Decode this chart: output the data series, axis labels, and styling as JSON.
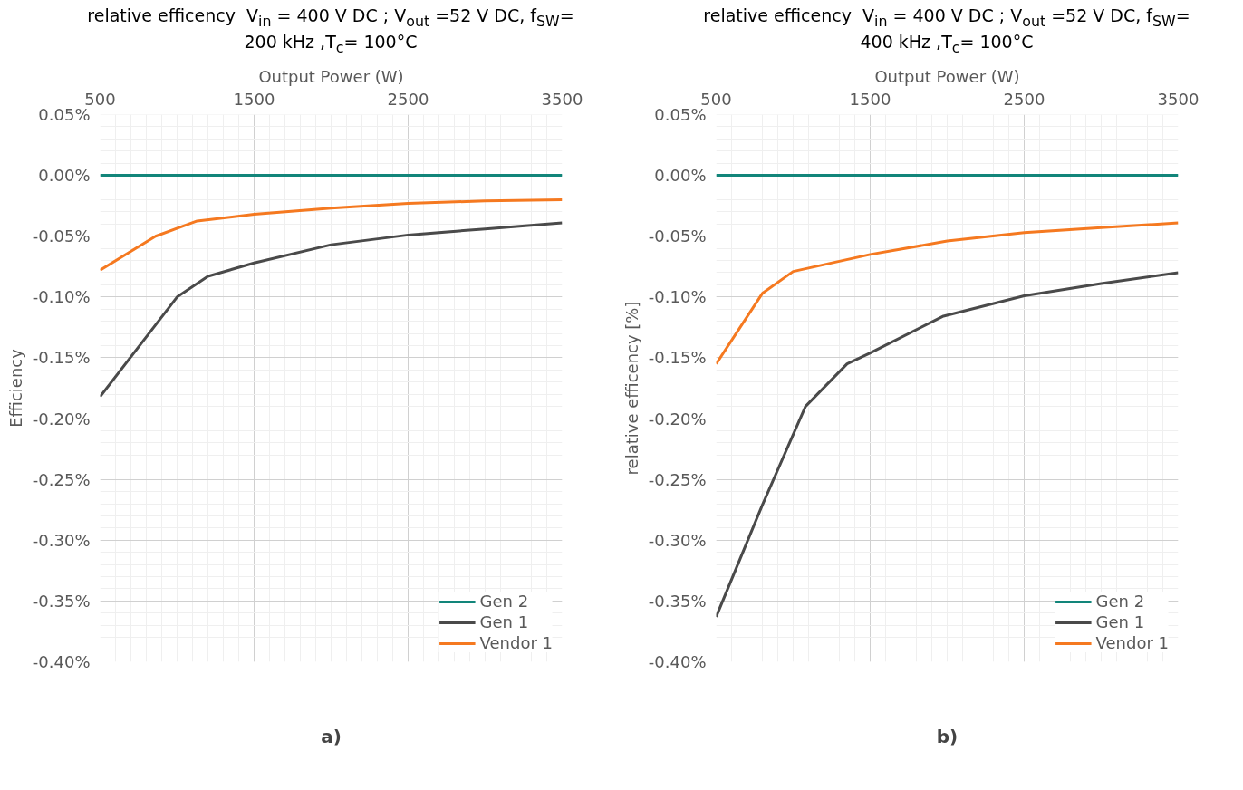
{
  "chart_data": [
    {
      "type": "line",
      "title": "relative efficency  V$_{in}$ = 400 V DC ; V$_{out}$ =52 V DC, f$_{SW}$= 200 kHz ,T$_{c}$= 100°C",
      "xlabel": "Output Power (W)",
      "ylabel": "Efficiency",
      "xlim": [
        500,
        3500
      ],
      "xticks": [
        500,
        1500,
        2500,
        3500
      ],
      "ylim": [
        -0.4,
        0.05
      ],
      "yticks": [
        {
          "value": 0.05,
          "label": "0.05%"
        },
        {
          "value": 0,
          "label": "0.00%"
        },
        {
          "value": -0.05,
          "label": "-0.05%"
        },
        {
          "value": -0.1,
          "label": "-0.10%"
        },
        {
          "value": -0.15,
          "label": "-0.15%"
        },
        {
          "value": -0.2,
          "label": "-0.20%"
        },
        {
          "value": -0.25,
          "label": "-0.25%"
        },
        {
          "value": -0.3,
          "label": "-0.30%"
        },
        {
          "value": -0.35,
          "label": "-0.35%"
        },
        {
          "value": -0.4,
          "label": "-0.40%"
        }
      ],
      "grid": true,
      "legend": "bottom right",
      "annotations": [
        "a)"
      ],
      "series": [
        {
          "name": "Gen 2",
          "color": "#12857a",
          "x": [
            500,
            3500
          ],
          "values": [
            0,
            0
          ]
        },
        {
          "name": "Gen 1",
          "color": "#4a4a4a",
          "x": [
            500,
            1000,
            1200,
            1500,
            2000,
            2500,
            3000,
            3500
          ],
          "values": [
            -0.182,
            -0.1,
            -0.083,
            -0.072,
            -0.057,
            -0.049,
            -0.044,
            -0.039
          ]
        },
        {
          "name": "Vendor 1",
          "color": "#f57920",
          "x": [
            500,
            860,
            1130,
            1500,
            2000,
            2500,
            3000,
            3500
          ],
          "values": [
            -0.078,
            -0.05,
            -0.0375,
            -0.032,
            -0.027,
            -0.023,
            -0.021,
            -0.02
          ]
        }
      ]
    },
    {
      "type": "line",
      "title": "relative efficency  V$_{in}$ = 400 V DC ; V$_{out}$ =52 V DC, f$_{SW}$= 400 kHz ,T$_{c}$= 100°C",
      "xlabel": "Output Power (W)",
      "ylabel": "relative efficency [%]",
      "xlim": [
        500,
        3500
      ],
      "xticks": [
        500,
        1500,
        2500,
        3500
      ],
      "ylim": [
        -0.4,
        0.05
      ],
      "yticks": [
        {
          "value": 0.05,
          "label": "0.05%"
        },
        {
          "value": 0,
          "label": "0.00%"
        },
        {
          "value": -0.05,
          "label": "-0.05%"
        },
        {
          "value": -0.1,
          "label": "-0.10%"
        },
        {
          "value": -0.15,
          "label": "-0.15%"
        },
        {
          "value": -0.2,
          "label": "-0.20%"
        },
        {
          "value": -0.25,
          "label": "-0.25%"
        },
        {
          "value": -0.3,
          "label": "-0.30%"
        },
        {
          "value": -0.35,
          "label": "-0.35%"
        },
        {
          "value": -0.4,
          "label": "-0.40%"
        }
      ],
      "grid": true,
      "legend": "bottom right",
      "annotations": [
        "b)"
      ],
      "series": [
        {
          "name": "Gen 2",
          "color": "#12857a",
          "x": [
            500,
            3500
          ],
          "values": [
            0,
            0
          ]
        },
        {
          "name": "Gen 1",
          "color": "#4a4a4a",
          "x": [
            500,
            800,
            1080,
            1350,
            1500,
            1970,
            2500,
            3000,
            3500
          ],
          "values": [
            -0.363,
            -0.271,
            -0.19,
            -0.155,
            -0.146,
            -0.116,
            -0.099,
            -0.089,
            -0.08
          ]
        },
        {
          "name": "Vendor 1",
          "color": "#f57920",
          "x": [
            500,
            800,
            1000,
            1500,
            2000,
            2500,
            3000,
            3500
          ],
          "values": [
            -0.155,
            -0.097,
            -0.079,
            -0.065,
            -0.054,
            -0.047,
            -0.043,
            -0.039
          ]
        }
      ]
    }
  ]
}
